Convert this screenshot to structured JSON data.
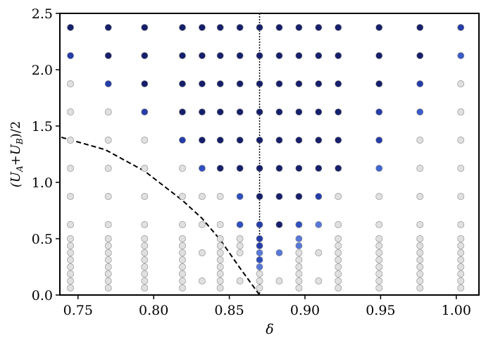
{
  "chart_data": {
    "type": "scatter",
    "xlabel": "δ",
    "ylabel": [
      "(U",
      "A",
      "+U",
      "B",
      ")/2"
    ],
    "xlim": [
      0.738,
      1.015
    ],
    "ylim": [
      0,
      2.5
    ],
    "xticks": [
      {
        "value": 0.75,
        "label": "0.75"
      },
      {
        "value": 0.8,
        "label": "0.80"
      },
      {
        "value": 0.85,
        "label": "0.85"
      },
      {
        "value": 0.9,
        "label": "0.90"
      },
      {
        "value": 0.95,
        "label": "0.95"
      },
      {
        "value": 1.0,
        "label": "1.00"
      }
    ],
    "yticks": [
      {
        "value": 0,
        "label": "0.0"
      },
      {
        "value": 0.5,
        "label": "0.5"
      },
      {
        "value": 1.0,
        "label": "1.0"
      },
      {
        "value": 1.5,
        "label": "1.5"
      },
      {
        "value": 2.0,
        "label": "2.0"
      },
      {
        "value": 2.5,
        "label": "2.5"
      }
    ],
    "vline": {
      "x": 0.87,
      "color": "#000000"
    },
    "curve": {
      "x": [
        0.739,
        0.768,
        0.794,
        0.819,
        0.832,
        0.844,
        0.857,
        0.87
      ],
      "y": [
        1.4,
        1.29,
        1.1,
        0.84,
        0.68,
        0.49,
        0.24,
        0
      ],
      "color": "#000000"
    },
    "columns": [
      {
        "x": 0.745,
        "y": [
          2.375,
          2.125,
          1.875,
          1.625,
          1.375,
          1.125,
          0.875,
          0.625,
          0.5,
          0.4375,
          0.375,
          0.3125,
          0.25,
          0.1875,
          0.125,
          0.0625
        ],
        "colors": [
          "#151f6b",
          "#253da8",
          "#e0e0e0",
          "#e0e0e0",
          "#e0e0e0",
          "#e0e0e0",
          "#e0e0e0",
          "#e0e0e0",
          "#e0e0e0",
          "#e0e0e0",
          "#e0e0e0",
          "#e0e0e0",
          "#e0e0e0",
          "#e0e0e0",
          "#e0e0e0",
          "#e0e0e0"
        ]
      },
      {
        "x": 0.77,
        "y": [
          2.375,
          2.125,
          1.875,
          1.625,
          1.375,
          1.125,
          0.875,
          0.625,
          0.5,
          0.4375,
          0.375,
          0.3125,
          0.25,
          0.1875,
          0.125,
          0.0625
        ],
        "colors": [
          "#151f6b",
          "#151f6b",
          "#253da8",
          "#e0e0e0",
          "#e0e0e0",
          "#e0e0e0",
          "#e0e0e0",
          "#e0e0e0",
          "#e0e0e0",
          "#e0e0e0",
          "#e0e0e0",
          "#e0e0e0",
          "#e0e0e0",
          "#e0e0e0",
          "#e0e0e0",
          "#e0e0e0"
        ]
      },
      {
        "x": 0.794,
        "y": [
          2.375,
          2.125,
          1.875,
          1.625,
          1.375,
          1.125,
          0.875,
          0.625,
          0.5,
          0.4375,
          0.375,
          0.3125,
          0.25,
          0.1875,
          0.125,
          0.0625
        ],
        "colors": [
          "#151f6b",
          "#151f6b",
          "#151f6b",
          "#253da8",
          "#e0e0e0",
          "#e0e0e0",
          "#e0e0e0",
          "#e0e0e0",
          "#e0e0e0",
          "#e0e0e0",
          "#e0e0e0",
          "#e0e0e0",
          "#e0e0e0",
          "#e0e0e0",
          "#e0e0e0",
          "#e0e0e0"
        ]
      },
      {
        "x": 0.819,
        "y": [
          2.375,
          2.125,
          1.875,
          1.625,
          1.375,
          1.125,
          0.875,
          0.625,
          0.5,
          0.4375,
          0.375,
          0.3125,
          0.25,
          0.1875,
          0.125,
          0.0625
        ],
        "colors": [
          "#151f6b",
          "#151f6b",
          "#151f6b",
          "#151f6b",
          "#253da8",
          "#e0e0e0",
          "#e0e0e0",
          "#e0e0e0",
          "#e0e0e0",
          "#e0e0e0",
          "#e0e0e0",
          "#e0e0e0",
          "#e0e0e0",
          "#e0e0e0",
          "#e0e0e0",
          "#e0e0e0"
        ]
      },
      {
        "x": 0.832,
        "y": [
          2.375,
          2.125,
          1.875,
          1.625,
          1.375,
          1.125,
          0.875,
          0.625,
          0.375,
          0.125
        ],
        "colors": [
          "#151f6b",
          "#151f6b",
          "#151f6b",
          "#151f6b",
          "#151f6b",
          "#2f4fbf",
          "#e0e0e0",
          "#e0e0e0",
          "#e0e0e0",
          "#e0e0e0"
        ]
      },
      {
        "x": 0.844,
        "y": [
          2.375,
          2.125,
          1.875,
          1.625,
          1.375,
          1.125,
          0.875,
          0.625,
          0.5,
          0.4375,
          0.375,
          0.3125,
          0.25,
          0.1875,
          0.125,
          0.0625
        ],
        "colors": [
          "#151f6b",
          "#151f6b",
          "#151f6b",
          "#151f6b",
          "#151f6b",
          "#151f6b",
          "#e0e0e0",
          "#e0e0e0",
          "#e0e0e0",
          "#e0e0e0",
          "#e0e0e0",
          "#e0e0e0",
          "#e0e0e0",
          "#e0e0e0",
          "#e0e0e0",
          "#e0e0e0"
        ]
      },
      {
        "x": 0.857,
        "y": [
          2.375,
          2.125,
          1.875,
          1.625,
          1.375,
          1.125,
          0.875,
          0.625,
          0.5,
          0.4375,
          0.375,
          0.125
        ],
        "colors": [
          "#151f6b",
          "#151f6b",
          "#151f6b",
          "#151f6b",
          "#151f6b",
          "#151f6b",
          "#2f4fbf",
          "#2f4fbf",
          "#e0e0e0",
          "#e0e0e0",
          "#e0e0e0",
          "#e0e0e0"
        ]
      },
      {
        "x": 0.87,
        "y": [
          2.375,
          2.125,
          1.875,
          1.625,
          1.375,
          1.125,
          0.875,
          0.625,
          0.5,
          0.4375,
          0.375,
          0.3125,
          0.25,
          0.1875,
          0.125,
          0.0625
        ],
        "colors": [
          "#151f6b",
          "#151f6b",
          "#151f6b",
          "#151f6b",
          "#151f6b",
          "#151f6b",
          "#151f6b",
          "#253da8",
          "#253da8",
          "#253da8",
          "#5878d8",
          "#2f4fbf",
          "#5878d8",
          "#e0e0e0",
          "#e0e0e0",
          "#e0e0e0"
        ]
      },
      {
        "x": 0.883,
        "y": [
          2.375,
          2.125,
          1.875,
          1.625,
          1.375,
          1.125,
          0.875,
          0.625,
          0.375,
          0.125
        ],
        "colors": [
          "#151f6b",
          "#151f6b",
          "#151f6b",
          "#151f6b",
          "#151f6b",
          "#151f6b",
          "#151f6b",
          "#151f6b",
          "#5878d8",
          "#e0e0e0"
        ]
      },
      {
        "x": 0.896,
        "y": [
          2.375,
          2.125,
          1.875,
          1.625,
          1.375,
          1.125,
          0.875,
          0.625,
          0.5,
          0.4375,
          0.375,
          0.3125,
          0.25,
          0.1875,
          0.125,
          0.0625
        ],
        "colors": [
          "#151f6b",
          "#151f6b",
          "#151f6b",
          "#151f6b",
          "#151f6b",
          "#151f6b",
          "#151f6b",
          "#2f4fbf",
          "#5878d8",
          "#5878d8",
          "#e0e0e0",
          "#e0e0e0",
          "#e0e0e0",
          "#e0e0e0",
          "#e0e0e0",
          "#e0e0e0"
        ]
      },
      {
        "x": 0.909,
        "y": [
          2.375,
          2.125,
          1.875,
          1.625,
          1.375,
          1.125,
          0.875,
          0.625,
          0.375,
          0.125
        ],
        "colors": [
          "#151f6b",
          "#151f6b",
          "#151f6b",
          "#151f6b",
          "#151f6b",
          "#151f6b",
          "#253da8",
          "#5878d8",
          "#e0e0e0",
          "#e0e0e0"
        ]
      },
      {
        "x": 0.922,
        "y": [
          2.375,
          2.125,
          1.875,
          1.625,
          1.375,
          1.125,
          0.875,
          0.625,
          0.5,
          0.4375,
          0.375,
          0.3125,
          0.25,
          0.1875,
          0.125,
          0.0625
        ],
        "colors": [
          "#151f6b",
          "#151f6b",
          "#151f6b",
          "#151f6b",
          "#151f6b",
          "#151f6b",
          "#e0e0e0",
          "#e0e0e0",
          "#e0e0e0",
          "#e0e0e0",
          "#e0e0e0",
          "#e0e0e0",
          "#e0e0e0",
          "#e0e0e0",
          "#e0e0e0",
          "#e0e0e0"
        ]
      },
      {
        "x": 0.949,
        "y": [
          2.375,
          2.125,
          1.875,
          1.625,
          1.375,
          1.125,
          0.875,
          0.625,
          0.5,
          0.4375,
          0.375,
          0.3125,
          0.25,
          0.1875,
          0.125,
          0.0625
        ],
        "colors": [
          "#151f6b",
          "#151f6b",
          "#151f6b",
          "#253da8",
          "#253da8",
          "#4066d0",
          "#e0e0e0",
          "#e0e0e0",
          "#e0e0e0",
          "#e0e0e0",
          "#e0e0e0",
          "#e0e0e0",
          "#e0e0e0",
          "#e0e0e0",
          "#e0e0e0",
          "#e0e0e0"
        ]
      },
      {
        "x": 0.976,
        "y": [
          2.375,
          2.125,
          1.875,
          1.625,
          1.375,
          1.125,
          0.875,
          0.625,
          0.5,
          0.4375,
          0.375,
          0.3125,
          0.25,
          0.1875,
          0.125,
          0.0625
        ],
        "colors": [
          "#151f6b",
          "#151f6b",
          "#253da8",
          "#3a5bc8",
          "#e0e0e0",
          "#e0e0e0",
          "#e0e0e0",
          "#e0e0e0",
          "#e0e0e0",
          "#e0e0e0",
          "#e0e0e0",
          "#e0e0e0",
          "#e0e0e0",
          "#e0e0e0",
          "#e0e0e0",
          "#e0e0e0"
        ]
      },
      {
        "x": 1.003,
        "y": [
          2.375,
          2.125,
          1.875,
          1.625,
          1.375,
          1.125,
          0.875,
          0.625,
          0.5,
          0.4375,
          0.375,
          0.3125,
          0.25,
          0.1875,
          0.125,
          0.0625
        ],
        "colors": [
          "#253da8",
          "#3a5bc8",
          "#e0e0e0",
          "#e0e0e0",
          "#e0e0e0",
          "#e0e0e0",
          "#e0e0e0",
          "#e0e0e0",
          "#e0e0e0",
          "#e0e0e0",
          "#e0e0e0",
          "#e0e0e0",
          "#e0e0e0",
          "#e0e0e0",
          "#e0e0e0",
          "#e0e0e0"
        ]
      }
    ]
  }
}
